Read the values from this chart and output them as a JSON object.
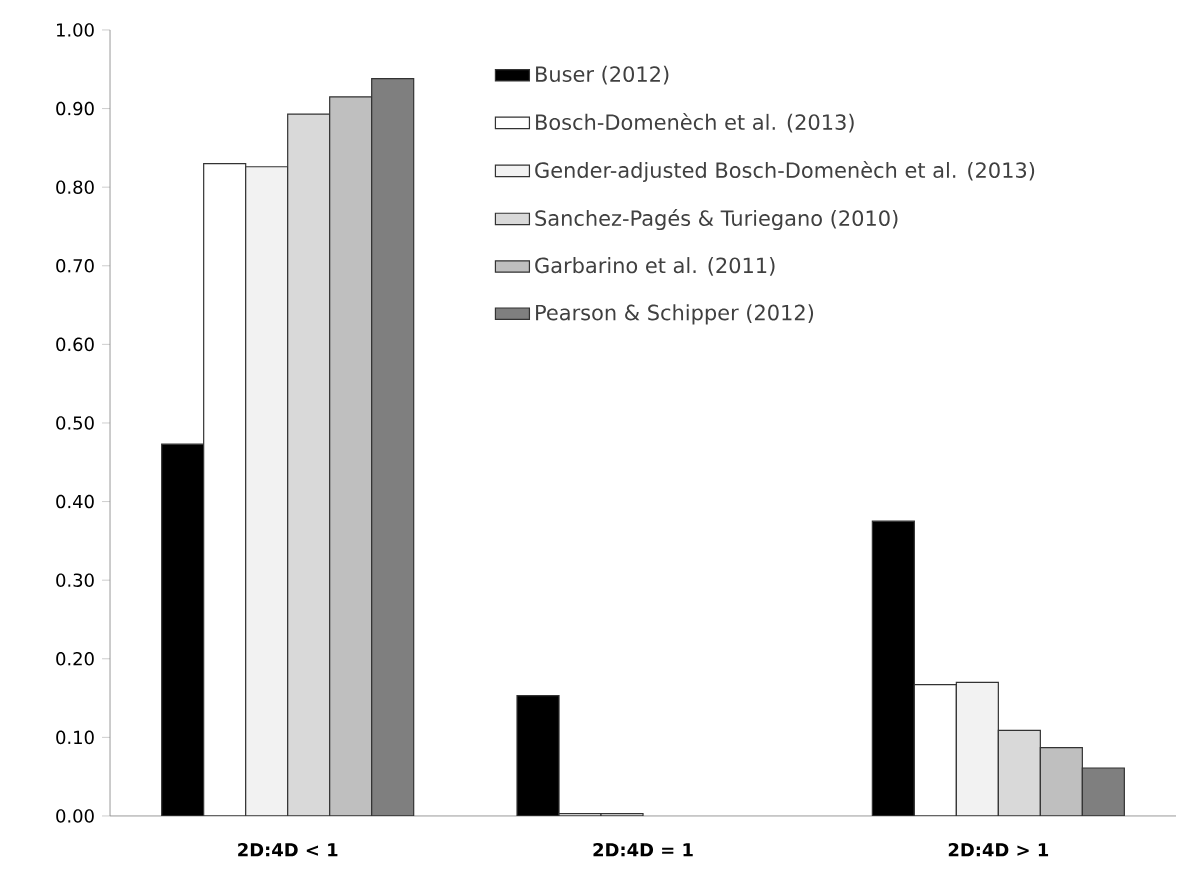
{
  "chart_data": {
    "type": "bar",
    "categories": [
      "2D:4D < 1",
      "2D:4D = 1",
      "2D:4D > 1"
    ],
    "series": [
      {
        "name": "Buser (2012)",
        "color": "#000000",
        "values": [
          0.473,
          0.153,
          0.375
        ]
      },
      {
        "name": "Bosch-Domenèch et al. (2013)",
        "color": "#ffffff",
        "values": [
          0.83,
          0.003,
          0.167
        ]
      },
      {
        "name": "Gender-adjusted Bosch-Domenèch  et al. (2013)",
        "color": "#f2f2f2",
        "values": [
          0.826,
          0.003,
          0.17
        ]
      },
      {
        "name": "Sanchez-Pagés & Turiegano (2010)",
        "color": "#d9d9d9",
        "values": [
          0.893,
          null,
          0.109
        ]
      },
      {
        "name": "Garbarino et al. (2011)",
        "color": "#bfbfbf",
        "values": [
          0.915,
          null,
          0.087
        ]
      },
      {
        "name": "Pearson & Schipper (2012)",
        "color": "#7f7f7f",
        "values": [
          0.938,
          null,
          0.061
        ]
      }
    ],
    "ylim": [
      0,
      1
    ],
    "yticks": [
      {
        "value": 0,
        "label": "0.00"
      },
      {
        "value": 0.1,
        "label": "0.10"
      },
      {
        "value": 0.2,
        "label": "0.20"
      },
      {
        "value": 0.3,
        "label": "0.30"
      },
      {
        "value": 0.4,
        "label": "0.40"
      },
      {
        "value": 0.5,
        "label": "0.50"
      },
      {
        "value": 0.6,
        "label": "0.60"
      },
      {
        "value": 0.7,
        "label": "0.70"
      },
      {
        "value": 0.8,
        "label": "0.80"
      },
      {
        "value": 0.9,
        "label": "0.90"
      },
      {
        "value": 1,
        "label": "1.00"
      }
    ],
    "grid": false,
    "legend": "top"
  }
}
